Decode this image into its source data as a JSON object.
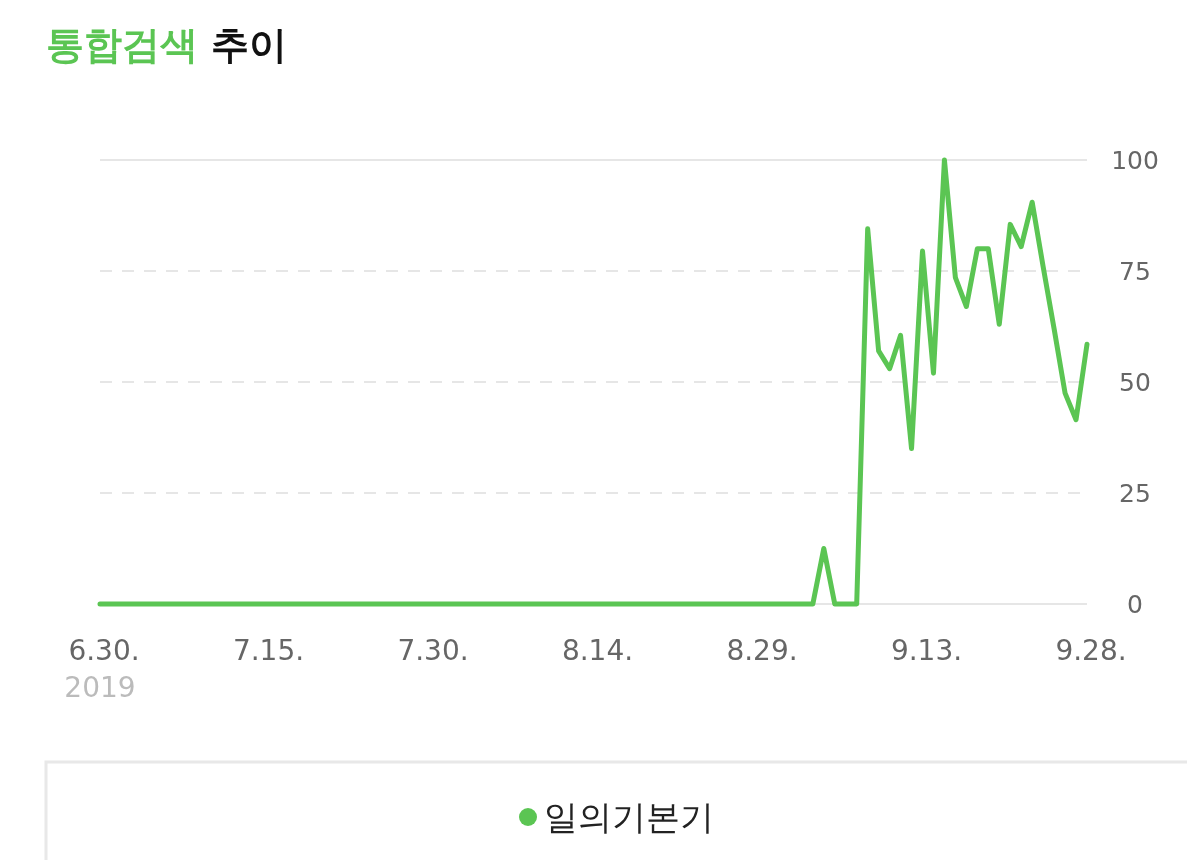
{
  "chart_data": {
    "type": "line",
    "title": "통합검색 추이",
    "x": [
      "2019-06-30",
      "2019-07-01",
      "2019-07-02",
      "2019-07-03",
      "2019-07-04",
      "2019-07-05",
      "2019-07-06",
      "2019-07-07",
      "2019-07-08",
      "2019-07-09",
      "2019-07-10",
      "2019-07-11",
      "2019-07-12",
      "2019-07-13",
      "2019-07-14",
      "2019-07-15",
      "2019-07-16",
      "2019-07-17",
      "2019-07-18",
      "2019-07-19",
      "2019-07-20",
      "2019-07-21",
      "2019-07-22",
      "2019-07-23",
      "2019-07-24",
      "2019-07-25",
      "2019-07-26",
      "2019-07-27",
      "2019-07-28",
      "2019-07-29",
      "2019-07-30",
      "2019-07-31",
      "2019-08-01",
      "2019-08-02",
      "2019-08-03",
      "2019-08-04",
      "2019-08-05",
      "2019-08-06",
      "2019-08-07",
      "2019-08-08",
      "2019-08-09",
      "2019-08-10",
      "2019-08-11",
      "2019-08-12",
      "2019-08-13",
      "2019-08-14",
      "2019-08-15",
      "2019-08-16",
      "2019-08-17",
      "2019-08-18",
      "2019-08-19",
      "2019-08-20",
      "2019-08-21",
      "2019-08-22",
      "2019-08-23",
      "2019-08-24",
      "2019-08-25",
      "2019-08-26",
      "2019-08-27",
      "2019-08-28",
      "2019-08-29",
      "2019-08-30",
      "2019-08-31",
      "2019-09-01",
      "2019-09-02",
      "2019-09-03",
      "2019-09-04",
      "2019-09-05",
      "2019-09-06",
      "2019-09-07",
      "2019-09-08",
      "2019-09-09",
      "2019-09-10",
      "2019-09-11",
      "2019-09-12",
      "2019-09-13",
      "2019-09-14",
      "2019-09-15",
      "2019-09-16",
      "2019-09-17",
      "2019-09-18",
      "2019-09-19",
      "2019-09-20",
      "2019-09-21",
      "2019-09-22",
      "2019-09-23",
      "2019-09-24",
      "2019-09-25",
      "2019-09-26",
      "2019-09-27",
      "2019-09-28"
    ],
    "series": [
      {
        "name": "일의기본기",
        "color": "#5bc553",
        "values": [
          0,
          0,
          0,
          0,
          0,
          0,
          0,
          0,
          0,
          0,
          0,
          0,
          0,
          0,
          0,
          0,
          0,
          0,
          0,
          0,
          0,
          0,
          0,
          0,
          0,
          0,
          0,
          0,
          0,
          0,
          0,
          0,
          0,
          0,
          0,
          0,
          0,
          0,
          0,
          0,
          0,
          0,
          0,
          0,
          0,
          0,
          0,
          0,
          0,
          0,
          0,
          0,
          0,
          0,
          0,
          0,
          0,
          0,
          0,
          0,
          0,
          0,
          0,
          0,
          0,
          0,
          12.5,
          0,
          0,
          0,
          84.5,
          57,
          53,
          60.5,
          35,
          79.5,
          52,
          100,
          73.5,
          67,
          80,
          80,
          63,
          85.5,
          80.5,
          90.5,
          76,
          62,
          47.5,
          41.5,
          58.5
        ]
      }
    ],
    "xlim": [
      "2019-06-30",
      "2019-09-28"
    ],
    "xticks": [
      {
        "value": "2019-06-30",
        "label": "6.30."
      },
      {
        "value": "2019-07-15",
        "label": "7.15."
      },
      {
        "value": "2019-07-30",
        "label": "7.30."
      },
      {
        "value": "2019-08-14",
        "label": "8.14."
      },
      {
        "value": "2019-08-29",
        "label": "8.29."
      },
      {
        "value": "2019-09-13",
        "label": "9.13."
      },
      {
        "value": "2019-09-28",
        "label": "9.28."
      }
    ],
    "ylim": [
      0,
      100
    ],
    "yticks": [
      0,
      25,
      50,
      75,
      100
    ],
    "grid": "y",
    "legend": "bottom",
    "annotations": [
      "2019"
    ]
  }
}
